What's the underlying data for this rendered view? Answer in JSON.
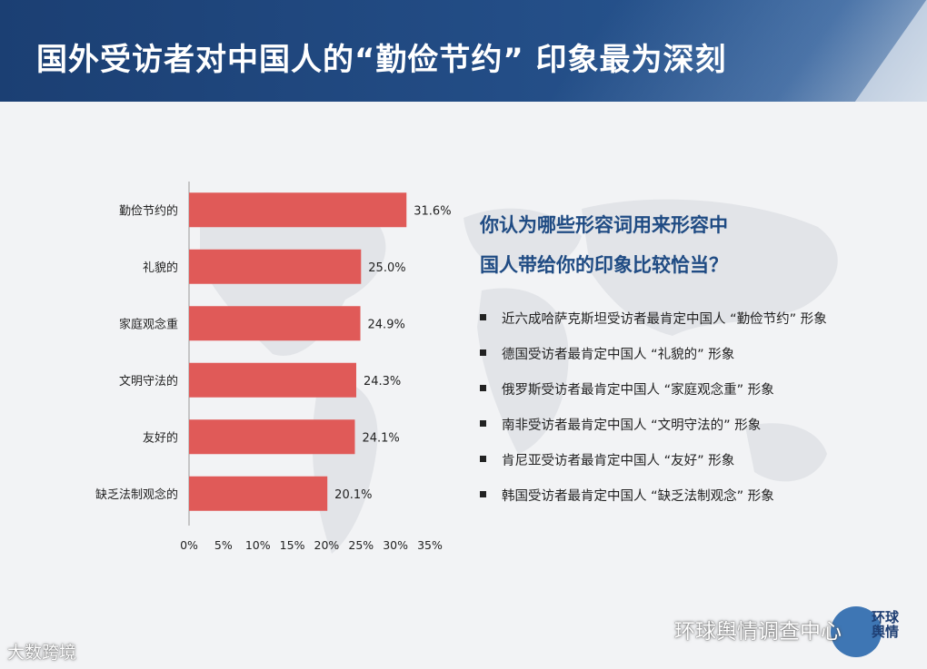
{
  "title": "国外受访者对中国人的“勤俭节约” 印象最为深刻",
  "question": {
    "line1": "你认为哪些形容词用来形容中",
    "line2": "国人带给你的印象比较恰当？"
  },
  "bullets": [
    "近六成哈萨克斯坦受访者最肯定中国人 “勤俭节约” 形象",
    "德国受访者最肯定中国人 “礼貌的” 形象",
    "俄罗斯受访者最肯定中国人 “家庭观念重” 形象",
    "南非受访者最肯定中国人 “文明守法的” 形象",
    "肯尼亚受访者最肯定中国人 “友好”  形象",
    "韩国受访者最肯定中国人 “缺乏法制观念” 形象"
  ],
  "watermark_left": "大数跨境",
  "watermark_right": "环球舆情调查中心",
  "logo_text": "环球舆情",
  "colors": {
    "bar": "#e05a58",
    "header": "#1f477d",
    "accent": "#1f4b83"
  },
  "chart_data": {
    "type": "bar",
    "orientation": "horizontal",
    "categories": [
      "勤俭节约的",
      "礼貌的",
      "家庭观念重",
      "文明守法的",
      "友好的",
      "缺乏法制观念的"
    ],
    "values": [
      31.6,
      25.0,
      24.9,
      24.3,
      24.1,
      20.1
    ],
    "value_labels": [
      "31.6%",
      "25.0%",
      "24.9%",
      "24.3%",
      "24.1%",
      "20.1%"
    ],
    "xlim": [
      0,
      35
    ],
    "x_ticks": [
      "0%",
      "5%",
      "10%",
      "15%",
      "20%",
      "25%",
      "30%",
      "35%"
    ],
    "grid": false,
    "legend": "none"
  }
}
